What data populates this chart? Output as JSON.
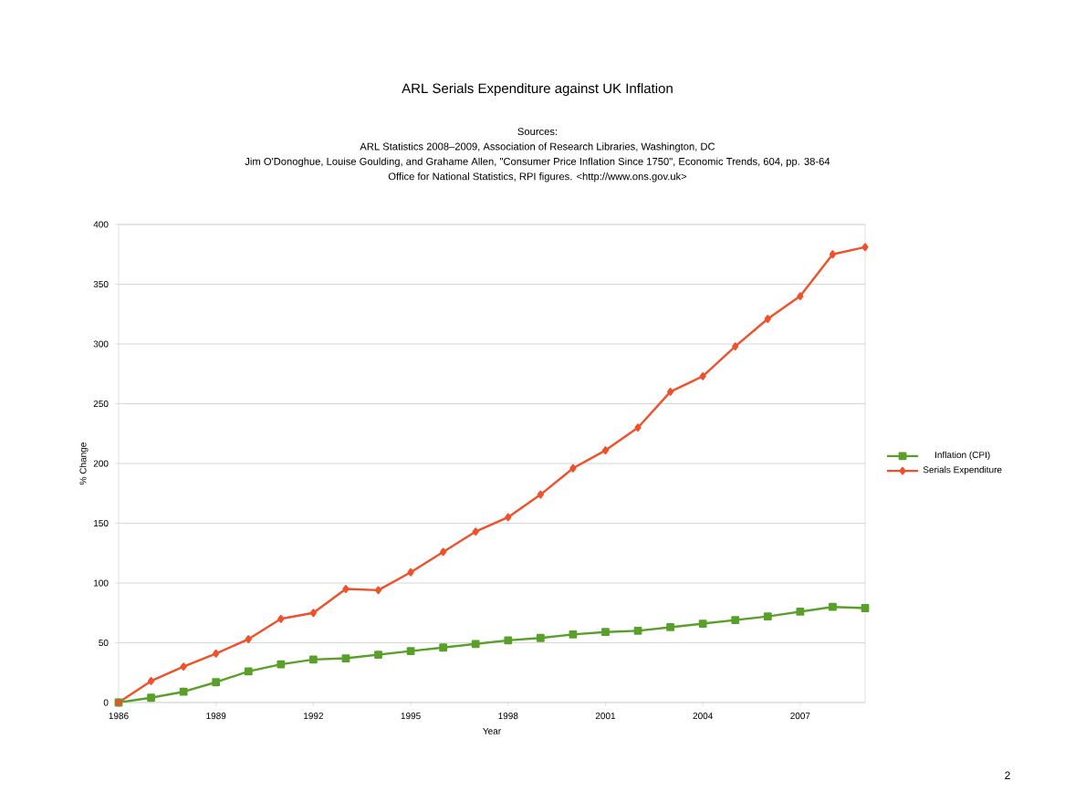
{
  "chart_data": {
    "type": "line",
    "title": "ARL Serials Expenditure against UK Inflation",
    "subtitle": "Sources:",
    "annotations": [
      "ARL Statistics 2008–2009, Association of Research Libraries, Washington, DC",
      "Jim O'Donoghue, Louise Goulding, and Grahame Allen, \"Consumer Price Inflation Since 1750\", Economic Trends, 604, pp. 38-64",
      "Office for National Statistics, RPI figures. <http://www.ons.gov.uk>",
      "2"
    ],
    "xlabel": "Year",
    "ylabel": "% Change",
    "x": [
      1986,
      1987,
      1988,
      1989,
      1990,
      1991,
      1992,
      1993,
      1994,
      1995,
      1996,
      1997,
      1998,
      1999,
      2000,
      2001,
      2002,
      2003,
      2004,
      2005,
      2006,
      2007,
      2008,
      2009
    ],
    "series": [
      {
        "name": "Inflation (CPI)",
        "color": "#59a02a",
        "marker": "square",
        "values": [
          0,
          4,
          9,
          17,
          26,
          32,
          36,
          37,
          40,
          43,
          46,
          49,
          52,
          54,
          57,
          59,
          60,
          63,
          66,
          69,
          72,
          76,
          80,
          79
        ]
      },
      {
        "name": "Serials Expenditure",
        "color": "#f0502a",
        "marker": "diamond",
        "values": [
          0,
          18,
          30,
          41,
          53,
          70,
          75,
          95,
          94,
          109,
          126,
          143,
          155,
          174,
          196,
          211,
          230,
          260,
          273,
          298,
          321,
          340,
          375,
          381
        ]
      }
    ],
    "xlim": [
      1986,
      2009
    ],
    "xticks": [
      1986,
      1989,
      1992,
      1995,
      1998,
      2001,
      2004,
      2007
    ],
    "ylim": [
      0,
      400
    ],
    "yticks": [
      0,
      50,
      100,
      150,
      200,
      250,
      300,
      350,
      400
    ],
    "grid": "y",
    "legend": "right",
    "line_style": "solid"
  }
}
